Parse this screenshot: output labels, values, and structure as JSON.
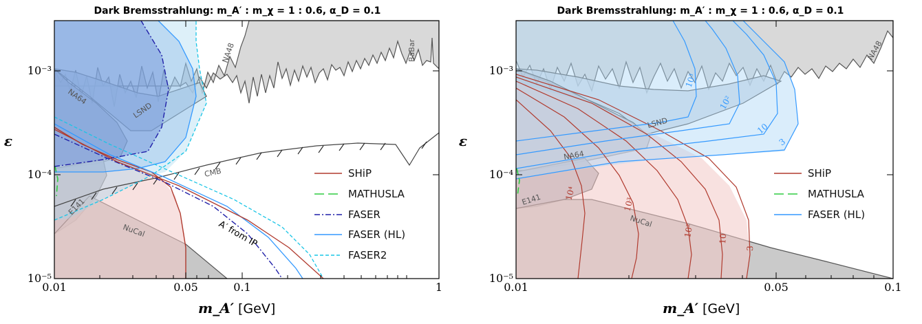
{
  "chart_data": [
    {
      "type": "line",
      "title": "Dark Bremsstrahlung:  m_A′ : m_χ = 1 : 0.6,  α_D = 0.1",
      "xlabel": "m_A′",
      "xunit": "[GeV]",
      "ylabel": "ε",
      "xscale": "log",
      "yscale": "log",
      "xlim": [
        0.01,
        1
      ],
      "ylim": [
        1e-05,
        0.003
      ],
      "xticks": [
        "0.01",
        "0.05",
        "0.1",
        "1"
      ],
      "yticks": [
        "10⁻³",
        "10⁻⁴",
        "10⁻⁵"
      ],
      "legend_position": "lower-right",
      "series": [
        {
          "name": "SHiP",
          "color": "#c0392b",
          "dash": "solid",
          "points": [
            [
              0.01,
              0.00032
            ],
            [
              0.02,
              0.00017
            ],
            [
              0.03,
              0.0001
            ],
            [
              0.045,
              4.5e-05
            ],
            [
              0.05,
              2.2e-05
            ],
            [
              0.049,
              1e-05
            ]
          ]
        },
        {
          "name": "MATHUSLA",
          "color": "#2ecc40",
          "dash": "long",
          "points": [
            [
              0.0101,
              0.00013
            ],
            [
              0.0104,
              0.0001
            ],
            [
              0.0101,
              7.5e-05
            ]
          ]
        },
        {
          "name": "FASER",
          "color": "#1f1fa8",
          "dash": "dashdot",
          "points": [
            [
              0.01,
              0.00011
            ],
            [
              0.025,
              0.00013
            ],
            [
              0.038,
              0.00025
            ],
            [
              0.043,
              0.0005
            ],
            [
              0.04,
              0.0011
            ],
            [
              0.03,
              0.0022
            ],
            [
              0.021,
              0.003
            ]
          ]
        },
        {
          "name": "FASER (HL)",
          "color": "#3399ff",
          "dash": "solid",
          "points": [
            [
              0.01,
              0.0003
            ],
            [
              0.05,
              0.0001
            ],
            [
              0.1,
              5e-05
            ],
            [
              0.2,
              1.5e-05
            ]
          ]
        },
        {
          "name": "FASER2",
          "color": "#19c5e6",
          "dash": "dashed",
          "points": [
            [
              0.01,
              0.00026
            ],
            [
              0.03,
              0.00012
            ],
            [
              0.1,
              5e-05
            ],
            [
              0.2,
              1.8e-05
            ]
          ]
        }
      ],
      "regions": [
        "NA48",
        "BaBar",
        "LSND",
        "NA64",
        "E141",
        "NuCal",
        "CMB"
      ],
      "annotations": [
        "A′ from IP"
      ]
    },
    {
      "type": "line",
      "title": "Dark Bremsstrahlung:  m_A′ : m_χ = 1 : 0.6,  α_D = 0.1",
      "xlabel": "m_A′",
      "xunit": "[GeV]",
      "ylabel": "ε",
      "xscale": "log",
      "yscale": "log",
      "xlim": [
        0.01,
        0.1
      ],
      "ylim": [
        1e-05,
        0.003
      ],
      "xticks": [
        "0.01",
        "0.05",
        "0.1"
      ],
      "yticks": [
        "10⁻³",
        "10⁻⁴",
        "10⁻⁵"
      ],
      "legend_position": "lower-right",
      "series": [
        {
          "name": "SHiP",
          "color": "#c0392b",
          "dash": "solid"
        },
        {
          "name": "MATHUSLA",
          "color": "#2ecc40",
          "dash": "long"
        },
        {
          "name": "FASER (HL)",
          "color": "#3399ff",
          "dash": "solid"
        }
      ],
      "ship_contour_labels": [
        "10⁴",
        "10³",
        "10²",
        "10",
        "3"
      ],
      "faser_contour_labels": [
        "10³",
        "10²",
        "10",
        "3"
      ],
      "regions": [
        "NA48",
        "LSND",
        "NA64",
        "E141",
        "NuCal"
      ]
    }
  ]
}
